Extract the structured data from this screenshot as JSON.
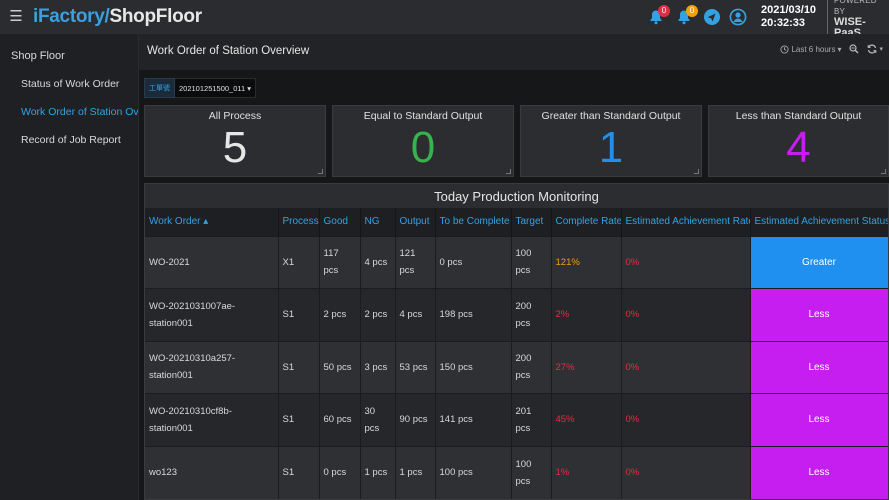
{
  "app": {
    "logo_part1": "iFactory/",
    "logo_part2": "ShopFloor",
    "date": "2021/03/10",
    "time": "20:32:33",
    "powered_by": "POWERED BY",
    "powered_brand": "WISE-PaaS",
    "notifications_count": "0",
    "alerts_count": "0"
  },
  "sidebar": {
    "title": "Shop Floor",
    "items": [
      {
        "label": "Status of Work Order",
        "active": false
      },
      {
        "label": "Work Order of Station Overview",
        "active": true
      },
      {
        "label": "Record of Job Report",
        "active": false
      }
    ]
  },
  "header": {
    "title": "Work Order of Station Overview",
    "time_range": "Last 6 hours"
  },
  "filter": {
    "label": "工單號",
    "value": "20210125150​0_011"
  },
  "stats": [
    {
      "label": "All Process",
      "value": "5",
      "color": "#e6e6e6"
    },
    {
      "label": "Equal to Standard Output",
      "value": "0",
      "color": "#37b24d"
    },
    {
      "label": "Greater than Standard Output",
      "value": "1",
      "color": "#1f8ff0"
    },
    {
      "label": "Less than Standard Output",
      "value": "4",
      "color": "#c61ef0"
    }
  ],
  "table": {
    "title": "Today Production Monitoring",
    "columns": [
      "Work Order",
      "Process",
      "Good",
      "NG",
      "Output",
      "To be Complete",
      "Target",
      "Complete Rate",
      "Estimated Achievement Rate",
      "Estimated Achievement Status"
    ],
    "sort_indicator": "▴",
    "rows": [
      {
        "work_order": "WO-2021",
        "process": "X1",
        "good": "117 pcs",
        "ng": "4 pcs",
        "output": "121 pcs",
        "to_be_complete": "0 pcs",
        "target": "100 pcs",
        "complete_rate": "121%",
        "rate_color": "orange",
        "est_rate": "0%",
        "status": "Greater"
      },
      {
        "work_order": "WO-2021031007ae-station001",
        "process": "S1",
        "good": "2 pcs",
        "ng": "2 pcs",
        "output": "4 pcs",
        "to_be_complete": "198 pcs",
        "target": "200 pcs",
        "complete_rate": "2%",
        "rate_color": "red",
        "est_rate": "0%",
        "status": "Less"
      },
      {
        "work_order": "WO-20210310a257-station001",
        "process": "S1",
        "good": "50 pcs",
        "ng": "3 pcs",
        "output": "53 pcs",
        "to_be_complete": "150 pcs",
        "target": "200 pcs",
        "complete_rate": "27%",
        "rate_color": "red",
        "est_rate": "0%",
        "status": "Less"
      },
      {
        "work_order": "WO-20210310cf8b-station001",
        "process": "S1",
        "good": "60 pcs",
        "ng": "30 pcs",
        "output": "90 pcs",
        "to_be_complete": "141 pcs",
        "target": "201 pcs",
        "complete_rate": "45%",
        "rate_color": "red",
        "est_rate": "0%",
        "status": "Less"
      },
      {
        "work_order": "wo123",
        "process": "S1",
        "good": "0 pcs",
        "ng": "1 pcs",
        "output": "1 pcs",
        "to_be_complete": "100 pcs",
        "target": "100 pcs",
        "complete_rate": "1%",
        "rate_color": "red",
        "est_rate": "0%",
        "status": "Less"
      }
    ]
  }
}
